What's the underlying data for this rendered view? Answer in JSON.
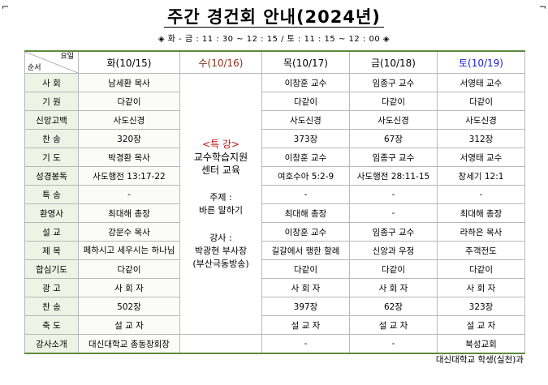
{
  "title": "주간 경건회 안내(2024년)",
  "subtitle": "◈ 화 - 금 : 11 : 30 ~ 12 : 15 / 토 : 11 : 15 ~ 12 : 00 ◈",
  "header": {
    "corner_day": "요일",
    "corner_order": "순서",
    "days": [
      "화(10/15)",
      "수(10/16)",
      "목(10/17)",
      "금(10/18)",
      "토(10/19)"
    ]
  },
  "wednesday": {
    "special": "<특 강>",
    "line1": "교수학습지원",
    "line2": "센터 교육",
    "topic_label": "주제 :",
    "topic": "바른 말하기",
    "speaker_label": "강사 :",
    "speaker": "박광현 부사장",
    "speaker_org": "(부산극동방송)"
  },
  "rows": [
    {
      "label": "사 회",
      "tue": "남세환 목사",
      "thu": "이창훈 교수",
      "fri": "임종구 교수",
      "sat": "서영태 교수"
    },
    {
      "label": "기 원",
      "tue": "다같이",
      "thu": "다같이",
      "fri": "다같이",
      "sat": "다같이"
    },
    {
      "label": "신앙고백",
      "tue": "사도신경",
      "thu": "사도신경",
      "fri": "사도신경",
      "sat": "사도신경"
    },
    {
      "label": "찬 송",
      "tue": "320장",
      "thu": "373장",
      "fri": "67장",
      "sat": "312장"
    },
    {
      "label": "기 도",
      "tue": "박경환 목사",
      "thu": "이창훈 교수",
      "fri": "임종구 교수",
      "sat": "서영태 교수"
    },
    {
      "label": "성경봉독",
      "tue": "사도행전 13:17-22",
      "thu": "여호수아 5:2-9",
      "fri": "사도행전 28:11-15",
      "sat": "창세기 12:1"
    },
    {
      "label": "특 송",
      "tue": "-",
      "thu": "-",
      "fri": "-",
      "sat": "-"
    },
    {
      "label": "환영사",
      "tue": "최대해 총장",
      "thu": "최대해 총장",
      "fri": "-",
      "sat": "최대해 총장"
    },
    {
      "label": "설 교",
      "tue": "강문수 목사",
      "thu": "이창훈 교수",
      "fri": "임종구 교수",
      "sat": "라하은 목사"
    },
    {
      "label": "제 목",
      "tue": "페하시고 세우시는 하나님",
      "thu": "길갈에서 행한 할례",
      "fri": "신앙과 우정",
      "sat": "주객전도"
    },
    {
      "label": "합심기도",
      "tue": "다같이",
      "thu": "다같이",
      "fri": "다같이",
      "sat": "다같이"
    },
    {
      "label": "광 고",
      "tue": "사 회 자",
      "thu": "사 회 자",
      "fri": "사 회 자",
      "sat": "사 회 자"
    },
    {
      "label": "찬 송",
      "tue": "502장",
      "thu": "397장",
      "fri": "62장",
      "sat": "323장"
    },
    {
      "label": "축 도",
      "tue": "설 교 자",
      "thu": "설 교 자",
      "fri": "설 교 자",
      "sat": "설 교 자"
    },
    {
      "label": "강사소개",
      "tue": "대신대학교 총동창회장",
      "thu": "-",
      "fri": "-",
      "sat": "북성교회"
    }
  ],
  "footer": "대신대학교 학생(실천)과",
  "colors": {
    "border_accent": "#5e8a3c",
    "label_bg": "#edf3e5",
    "saturday": "#1c1ccc",
    "special": "#c21010"
  }
}
